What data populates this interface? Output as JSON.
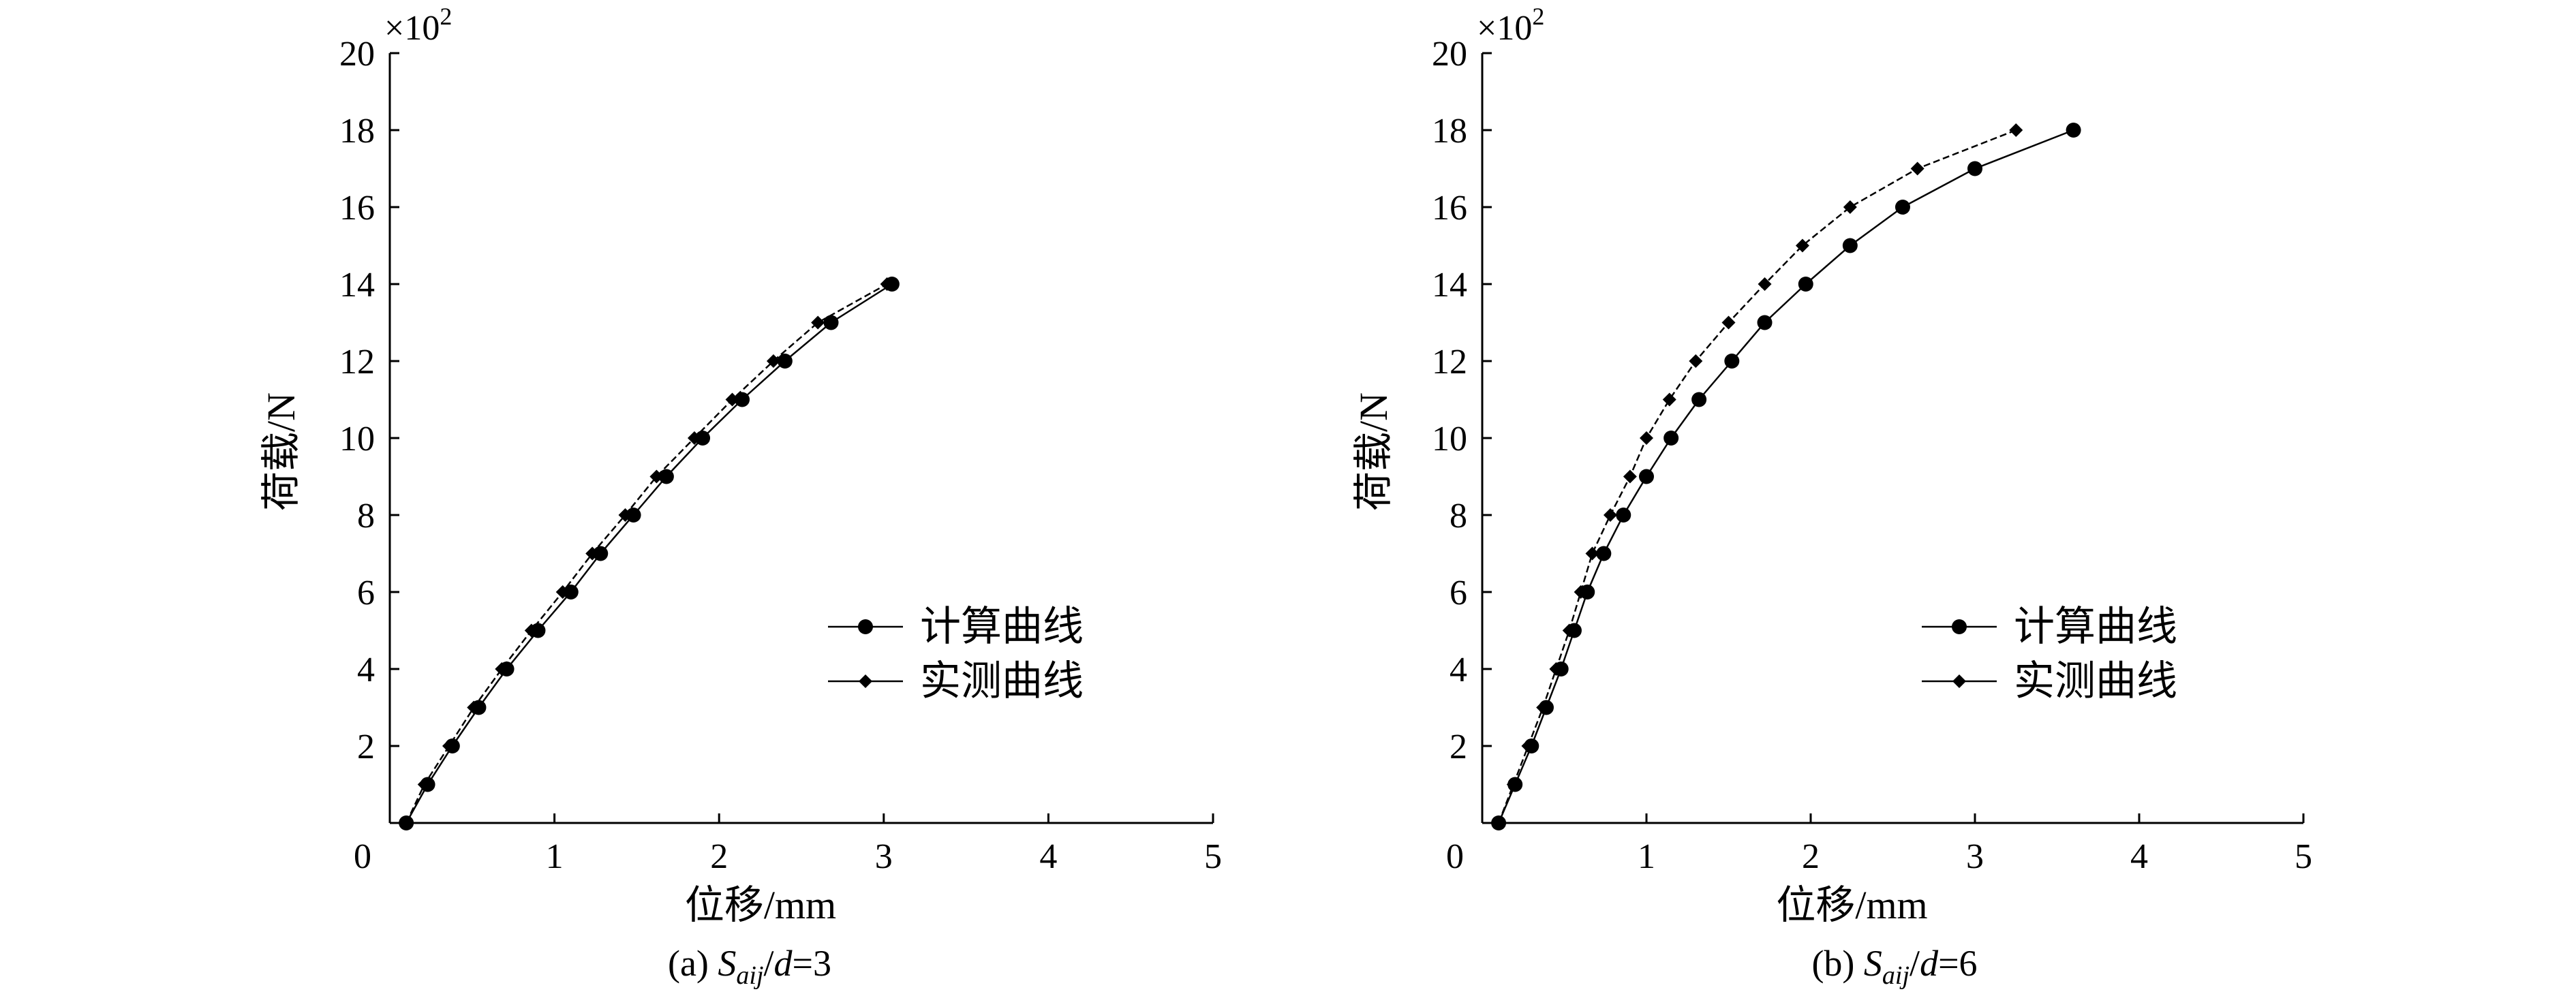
{
  "chart_data": [
    {
      "type": "line",
      "caption": {
        "prefix": "(a) ",
        "var": "S",
        "sub": "aij",
        "slash": "/",
        "d": "d",
        "rest": "=3"
      },
      "xlabel": "位移/mm",
      "ylabel": "荷载/N",
      "y_multiplier": {
        "base": "×10",
        "exp": "2"
      },
      "xlim": [
        0,
        5
      ],
      "ylim": [
        0,
        20
      ],
      "x_ticks": [
        0,
        1,
        2,
        3,
        4,
        5
      ],
      "y_ticks": [
        2,
        4,
        6,
        8,
        10,
        12,
        14,
        16,
        18,
        20
      ],
      "legend_position": "center-right",
      "series": [
        {
          "name": "计算曲线",
          "marker": "circle",
          "points": [
            [
              0.1,
              0
            ],
            [
              0.23,
              1
            ],
            [
              0.38,
              2
            ],
            [
              0.54,
              3
            ],
            [
              0.71,
              4
            ],
            [
              0.9,
              5
            ],
            [
              1.1,
              6
            ],
            [
              1.28,
              7
            ],
            [
              1.48,
              8
            ],
            [
              1.68,
              9
            ],
            [
              1.9,
              10
            ],
            [
              2.14,
              11
            ],
            [
              2.4,
              12
            ],
            [
              2.68,
              13
            ],
            [
              3.05,
              14
            ]
          ]
        },
        {
          "name": "实测曲线",
          "marker": "diamond",
          "points": [
            [
              0.1,
              0
            ],
            [
              0.21,
              1
            ],
            [
              0.36,
              2
            ],
            [
              0.51,
              3
            ],
            [
              0.68,
              4
            ],
            [
              0.86,
              5
            ],
            [
              1.05,
              6
            ],
            [
              1.23,
              7
            ],
            [
              1.43,
              8
            ],
            [
              1.62,
              9
            ],
            [
              1.85,
              10
            ],
            [
              2.08,
              11
            ],
            [
              2.33,
              12
            ],
            [
              2.6,
              13
            ],
            [
              3.02,
              14
            ]
          ]
        }
      ]
    },
    {
      "type": "line",
      "caption": {
        "prefix": "(b) ",
        "var": "S",
        "sub": "aij",
        "slash": "/",
        "d": "d",
        "rest": "=6"
      },
      "xlabel": "位移/mm",
      "ylabel": "荷载/N",
      "y_multiplier": {
        "base": "×10",
        "exp": "2"
      },
      "xlim": [
        0,
        5
      ],
      "ylim": [
        0,
        20
      ],
      "x_ticks": [
        0,
        1,
        2,
        3,
        4,
        5
      ],
      "y_ticks": [
        2,
        4,
        6,
        8,
        10,
        12,
        14,
        16,
        18,
        20
      ],
      "legend_position": "center-right",
      "series": [
        {
          "name": "计算曲线",
          "marker": "circle",
          "points": [
            [
              0.1,
              0
            ],
            [
              0.2,
              1
            ],
            [
              0.3,
              2
            ],
            [
              0.39,
              3
            ],
            [
              0.48,
              4
            ],
            [
              0.56,
              5
            ],
            [
              0.64,
              6
            ],
            [
              0.74,
              7
            ],
            [
              0.86,
              8
            ],
            [
              1.0,
              9
            ],
            [
              1.15,
              10
            ],
            [
              1.32,
              11
            ],
            [
              1.52,
              12
            ],
            [
              1.72,
              13
            ],
            [
              1.97,
              14
            ],
            [
              2.24,
              15
            ],
            [
              2.56,
              16
            ],
            [
              3.0,
              17
            ],
            [
              3.6,
              18
            ]
          ]
        },
        {
          "name": "实测曲线",
          "marker": "diamond",
          "points": [
            [
              0.1,
              0
            ],
            [
              0.19,
              1
            ],
            [
              0.28,
              2
            ],
            [
              0.37,
              3
            ],
            [
              0.45,
              4
            ],
            [
              0.53,
              5
            ],
            [
              0.6,
              6
            ],
            [
              0.67,
              7
            ],
            [
              0.78,
              8
            ],
            [
              0.9,
              9
            ],
            [
              1.0,
              10
            ],
            [
              1.14,
              11
            ],
            [
              1.3,
              12
            ],
            [
              1.5,
              13
            ],
            [
              1.72,
              14
            ],
            [
              1.95,
              15
            ],
            [
              2.24,
              16
            ],
            [
              2.65,
              17
            ],
            [
              3.25,
              18
            ]
          ]
        }
      ]
    }
  ]
}
